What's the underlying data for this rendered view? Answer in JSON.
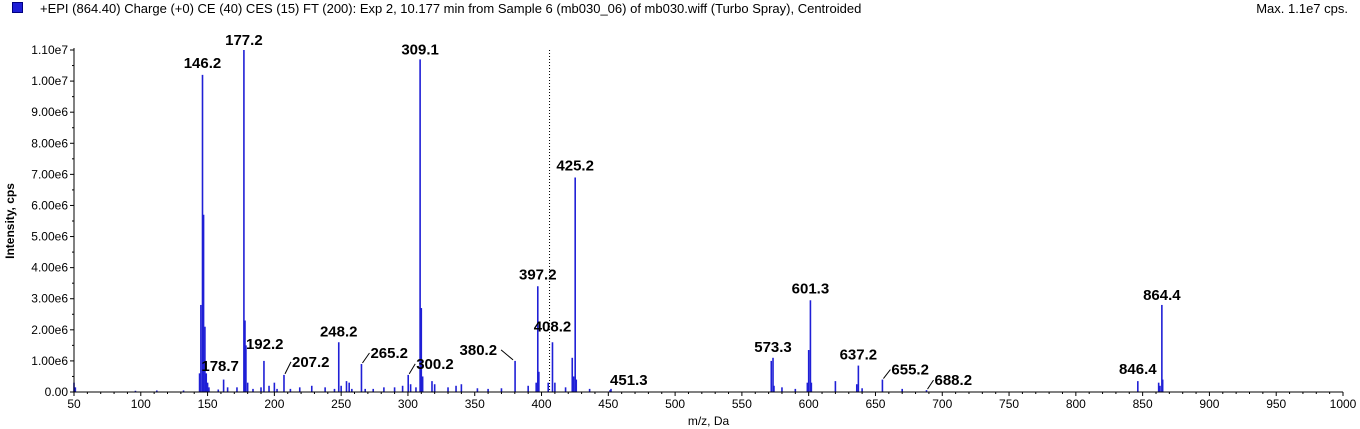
{
  "header": {
    "title": "+EPI (864.40) Charge (+0) CE (40) CES (15) FT (200): Exp 2, 10.177 min from Sample 6 (mb030_06) of mb030.wiff (Turbo Spray), Centroided",
    "max_label": "Max. 1.1e7 cps."
  },
  "colors": {
    "series": "#1f1fd6",
    "axis": "#000000"
  },
  "chart_data": {
    "type": "bar",
    "xlabel": "m/z, Da",
    "ylabel": "Intensity, cps",
    "xlim": [
      50,
      1000
    ],
    "ylim": [
      0,
      11000000
    ],
    "x_ticks": [
      50,
      100,
      150,
      200,
      250,
      300,
      350,
      400,
      450,
      500,
      550,
      600,
      650,
      700,
      750,
      800,
      850,
      900,
      950,
      1000
    ],
    "x_tick_labels": [
      "50",
      "100",
      "150",
      "200",
      "250",
      "300",
      "350",
      "400",
      "450",
      "500",
      "550",
      "600",
      "650",
      "700",
      "750",
      "800",
      "850",
      "900",
      "950",
      "1000"
    ],
    "y_ticks": [
      0,
      1000000,
      2000000,
      3000000,
      4000000,
      5000000,
      6000000,
      7000000,
      8000000,
      9000000,
      10000000,
      11000000
    ],
    "y_tick_labels": [
      "0.00",
      "1.00e6",
      "2.00e6",
      "3.00e6",
      "4.00e6",
      "5.00e6",
      "6.00e6",
      "7.00e6",
      "8.00e6",
      "9.00e6",
      "1.00e7",
      "1.10e7"
    ],
    "cursor_mz": 406,
    "peaks": [
      [
        50,
        300000
      ],
      [
        51,
        150000
      ],
      [
        96,
        40000
      ],
      [
        112,
        50000
      ],
      [
        132,
        50000
      ],
      [
        144,
        600000
      ],
      [
        145,
        2800000
      ],
      [
        146.2,
        10200000
      ],
      [
        147,
        5700000
      ],
      [
        148,
        2100000
      ],
      [
        149,
        600000
      ],
      [
        150,
        300000
      ],
      [
        151,
        150000
      ],
      [
        158,
        80000
      ],
      [
        162,
        400000
      ],
      [
        165,
        150000
      ],
      [
        172,
        150000
      ],
      [
        177.2,
        11000000
      ],
      [
        178,
        2300000
      ],
      [
        178.7,
        1500000
      ],
      [
        180,
        300000
      ],
      [
        184,
        100000
      ],
      [
        190,
        150000
      ],
      [
        192.2,
        1000000
      ],
      [
        196,
        200000
      ],
      [
        200,
        300000
      ],
      [
        202,
        100000
      ],
      [
        207.2,
        550000
      ],
      [
        212,
        100000
      ],
      [
        219,
        150000
      ],
      [
        228,
        200000
      ],
      [
        238,
        150000
      ],
      [
        245,
        100000
      ],
      [
        248.2,
        1600000
      ],
      [
        250,
        200000
      ],
      [
        254,
        350000
      ],
      [
        256,
        300000
      ],
      [
        258,
        100000
      ],
      [
        265.2,
        900000
      ],
      [
        268,
        100000
      ],
      [
        274,
        100000
      ],
      [
        282,
        150000
      ],
      [
        290,
        150000
      ],
      [
        296,
        200000
      ],
      [
        300.2,
        550000
      ],
      [
        302,
        250000
      ],
      [
        306,
        150000
      ],
      [
        309.1,
        10700000
      ],
      [
        310,
        2700000
      ],
      [
        311,
        500000
      ],
      [
        318,
        350000
      ],
      [
        320,
        250000
      ],
      [
        330,
        150000
      ],
      [
        336,
        200000
      ],
      [
        340,
        250000
      ],
      [
        352,
        120000
      ],
      [
        360,
        100000
      ],
      [
        370,
        120000
      ],
      [
        380.2,
        1000000
      ],
      [
        390,
        200000
      ],
      [
        396,
        300000
      ],
      [
        397.2,
        3400000
      ],
      [
        398,
        650000
      ],
      [
        405,
        300000
      ],
      [
        408.2,
        1600000
      ],
      [
        410,
        300000
      ],
      [
        418,
        150000
      ],
      [
        423,
        1100000
      ],
      [
        424,
        500000
      ],
      [
        425.2,
        6900000
      ],
      [
        426,
        400000
      ],
      [
        436,
        100000
      ],
      [
        451.3,
        60000
      ],
      [
        452,
        100000
      ],
      [
        572,
        1000000
      ],
      [
        573.3,
        1100000
      ],
      [
        574,
        200000
      ],
      [
        580,
        150000
      ],
      [
        590,
        100000
      ],
      [
        599,
        300000
      ],
      [
        600,
        1350000
      ],
      [
        601.3,
        2950000
      ],
      [
        602,
        300000
      ],
      [
        620,
        350000
      ],
      [
        636,
        250000
      ],
      [
        637.2,
        850000
      ],
      [
        640,
        120000
      ],
      [
        655.2,
        400000
      ],
      [
        670,
        100000
      ],
      [
        688.2,
        60000
      ],
      [
        846.4,
        350000
      ],
      [
        862,
        300000
      ],
      [
        863,
        200000
      ],
      [
        864.4,
        2800000
      ],
      [
        865,
        400000
      ]
    ],
    "labels": [
      {
        "text": "146.2",
        "mz": 146.2
      },
      {
        "text": "177.2",
        "mz": 177.2
      },
      {
        "text": "309.1",
        "mz": 309.1
      },
      {
        "text": "425.2",
        "mz": 425.2
      },
      {
        "text": "397.2",
        "mz": 397.2
      },
      {
        "text": "408.2",
        "mz": 408.2
      },
      {
        "text": "248.2",
        "mz": 248.2
      },
      {
        "text": "265.2",
        "mz": 265.2
      },
      {
        "text": "300.2",
        "mz": 300.2
      },
      {
        "text": "380.2",
        "mz": 380.2
      },
      {
        "text": "178.7",
        "mz": 178.7
      },
      {
        "text": "192.2",
        "mz": 192.2
      },
      {
        "text": "207.2",
        "mz": 207.2
      },
      {
        "text": "451.3",
        "mz": 451.3
      },
      {
        "text": "573.3",
        "mz": 573.3
      },
      {
        "text": "601.3",
        "mz": 601.3
      },
      {
        "text": "637.2",
        "mz": 637.2
      },
      {
        "text": "655.2",
        "mz": 655.2
      },
      {
        "text": "688.2",
        "mz": 688.2
      },
      {
        "text": "846.4",
        "mz": 846.4
      },
      {
        "text": "864.4",
        "mz": 864.4
      }
    ]
  }
}
